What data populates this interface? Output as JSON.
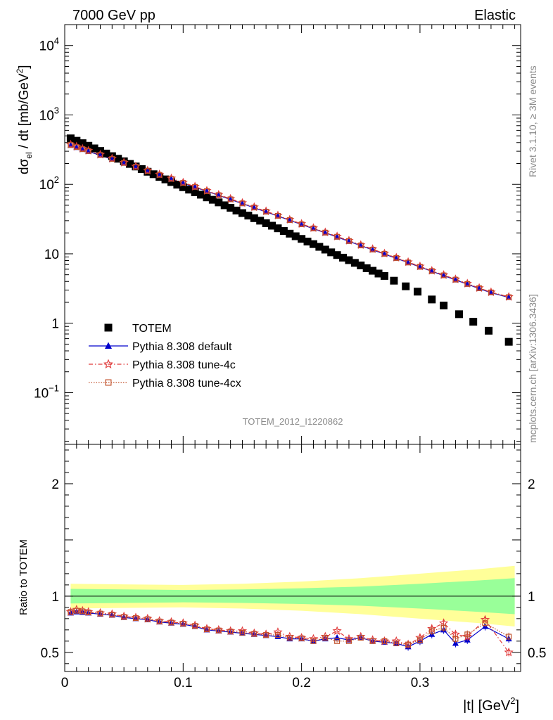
{
  "header": {
    "left": "7000 GeV pp",
    "right": "Elastic"
  },
  "side_labels": {
    "rivet": "Rivet 3.1.10, ≥ 3M events",
    "mcplots": "mcplots.cern.ch [arXiv:1306.3436]"
  },
  "analysis_id": "TOTEM_2012_I1220862",
  "chart_data": [
    {
      "type": "scatter",
      "panel": "main",
      "ylabel": "dσel / dt [mb/GeV²]",
      "yscale": "log",
      "ylim": [
        0.018,
        20000
      ],
      "xlim": [
        0,
        0.385
      ],
      "yticks": [
        {
          "v": 10000,
          "label": "10^4"
        },
        {
          "v": 1000,
          "label": "10^3"
        },
        {
          "v": 100,
          "label": "10^2"
        },
        {
          "v": 10,
          "label": "10"
        },
        {
          "v": 1,
          "label": "1"
        },
        {
          "v": 0.1,
          "label": "10^-1"
        }
      ],
      "legend": {
        "position": "bottom-left",
        "entries": [
          {
            "name": "TOTEM",
            "marker": "filled-square",
            "color": "#000000"
          },
          {
            "name": "Pythia 8.308 default",
            "marker": "filled-triangle",
            "color": "#0000cc"
          },
          {
            "name": "Pythia 8.308 tune-4c",
            "marker": "open-star",
            "color": "#e03a3a"
          },
          {
            "name": "Pythia 8.308 tune-4cx",
            "marker": "open-square",
            "color": "#c0502a"
          }
        ]
      },
      "series": [
        {
          "name": "TOTEM",
          "x": [
            0.005,
            0.01,
            0.015,
            0.02,
            0.025,
            0.03,
            0.035,
            0.04,
            0.045,
            0.05,
            0.055,
            0.06,
            0.065,
            0.07,
            0.075,
            0.08,
            0.085,
            0.09,
            0.095,
            0.1,
            0.105,
            0.11,
            0.115,
            0.12,
            0.125,
            0.13,
            0.135,
            0.14,
            0.145,
            0.15,
            0.155,
            0.16,
            0.165,
            0.17,
            0.175,
            0.18,
            0.185,
            0.19,
            0.195,
            0.2,
            0.205,
            0.21,
            0.215,
            0.22,
            0.225,
            0.23,
            0.235,
            0.24,
            0.245,
            0.25,
            0.255,
            0.26,
            0.265,
            0.27,
            0.278,
            0.288,
            0.298,
            0.31,
            0.32,
            0.333,
            0.345,
            0.358,
            0.375
          ],
          "y": [
            460,
            425,
            392,
            360,
            330,
            303,
            278,
            255,
            234,
            215,
            197,
            181,
            166,
            152,
            140,
            128,
            118,
            108,
            99,
            91,
            84,
            77,
            71,
            65,
            60,
            55,
            50,
            46,
            42,
            38.6,
            35.5,
            32.6,
            30,
            27.6,
            25.4,
            23.3,
            21.3,
            19.5,
            17.9,
            16.4,
            15,
            13.8,
            12.6,
            11.5,
            10.5,
            9.6,
            8.8,
            8.1,
            7.4,
            6.8,
            6.2,
            5.7,
            5.2,
            4.8,
            4.1,
            3.4,
            2.85,
            2.2,
            1.8,
            1.35,
            1.05,
            0.78,
            0.54
          ]
        },
        {
          "name": "Pythia 8.308 default",
          "x": [
            0.005,
            0.01,
            0.015,
            0.02,
            0.03,
            0.04,
            0.05,
            0.06,
            0.07,
            0.08,
            0.09,
            0.1,
            0.11,
            0.12,
            0.13,
            0.14,
            0.15,
            0.16,
            0.17,
            0.18,
            0.19,
            0.2,
            0.21,
            0.22,
            0.23,
            0.24,
            0.25,
            0.26,
            0.27,
            0.28,
            0.29,
            0.3,
            0.31,
            0.32,
            0.33,
            0.34,
            0.35,
            0.36,
            0.375
          ],
          "y": [
            365,
            340,
            318,
            298,
            262,
            230,
            202,
            177,
            155,
            136,
            119,
            104,
            91,
            79.5,
            69.5,
            60.5,
            52.8,
            46,
            40.1,
            34.9,
            30.4,
            26.4,
            23,
            20,
            17.4,
            15.1,
            13.1,
            11.4,
            9.9,
            8.6,
            7.45,
            6.45,
            5.6,
            4.85,
            4.2,
            3.65,
            3.15,
            2.75,
            2.35
          ]
        },
        {
          "name": "Pythia 8.308 tune-4c",
          "x": [
            0.005,
            0.01,
            0.015,
            0.02,
            0.03,
            0.04,
            0.05,
            0.06,
            0.07,
            0.08,
            0.09,
            0.1,
            0.11,
            0.12,
            0.13,
            0.14,
            0.15,
            0.16,
            0.17,
            0.18,
            0.19,
            0.2,
            0.21,
            0.22,
            0.23,
            0.24,
            0.25,
            0.26,
            0.27,
            0.28,
            0.29,
            0.3,
            0.31,
            0.32,
            0.33,
            0.34,
            0.35,
            0.36,
            0.375
          ],
          "y": [
            375,
            350,
            327,
            306,
            268,
            235,
            206,
            181,
            158,
            139,
            122,
            106,
            93,
            81,
            71,
            62,
            54,
            47,
            41,
            35.7,
            31,
            27,
            23.5,
            20.4,
            17.8,
            15.5,
            13.4,
            11.7,
            10.1,
            8.8,
            7.6,
            6.6,
            5.7,
            4.95,
            4.3,
            3.72,
            3.22,
            2.8,
            2.4
          ]
        },
        {
          "name": "Pythia 8.308 tune-4cx",
          "x": [
            0.005,
            0.01,
            0.015,
            0.02,
            0.03,
            0.04,
            0.05,
            0.06,
            0.07,
            0.08,
            0.09,
            0.1,
            0.11,
            0.12,
            0.13,
            0.14,
            0.15,
            0.16,
            0.17,
            0.18,
            0.19,
            0.2,
            0.21,
            0.22,
            0.23,
            0.24,
            0.25,
            0.26,
            0.27,
            0.28,
            0.29,
            0.3,
            0.31,
            0.32,
            0.33,
            0.34,
            0.35,
            0.36,
            0.375
          ],
          "y": [
            370,
            345,
            322,
            302,
            265,
            232,
            204,
            179,
            156,
            137,
            120,
            105,
            92,
            80,
            70,
            61,
            53.3,
            46.4,
            40.4,
            35.2,
            30.6,
            26.6,
            23.2,
            20.2,
            17.6,
            15.3,
            13.2,
            11.5,
            10,
            8.7,
            7.5,
            6.5,
            5.65,
            4.9,
            4.25,
            3.68,
            3.2,
            2.78,
            2.38
          ]
        }
      ]
    },
    {
      "type": "line",
      "panel": "ratio",
      "ylabel": "Ratio to TOTEM",
      "xlabel": "|t| [GeV²]",
      "ylim": [
        0.33,
        2.35
      ],
      "xlim": [
        0,
        0.385
      ],
      "xticks": [
        "0",
        "0.1",
        "0.2",
        "0.3"
      ],
      "yticks": [
        "0.5",
        "1",
        "2"
      ],
      "bands": [
        {
          "name": "yellow-band",
          "color": "#ffff99",
          "x": [
            0.005,
            0.05,
            0.1,
            0.15,
            0.2,
            0.25,
            0.3,
            0.35,
            0.38
          ],
          "half_width": [
            0.11,
            0.105,
            0.1,
            0.11,
            0.13,
            0.16,
            0.2,
            0.24,
            0.27
          ]
        },
        {
          "name": "green-band",
          "color": "#99ff99",
          "x": [
            0.005,
            0.05,
            0.1,
            0.15,
            0.2,
            0.25,
            0.3,
            0.35,
            0.38
          ],
          "half_width": [
            0.065,
            0.06,
            0.055,
            0.06,
            0.07,
            0.085,
            0.11,
            0.14,
            0.16
          ]
        }
      ],
      "series": [
        {
          "name": "Pythia 8.308 default",
          "x": [
            0.005,
            0.01,
            0.015,
            0.02,
            0.03,
            0.04,
            0.05,
            0.06,
            0.07,
            0.08,
            0.09,
            0.1,
            0.11,
            0.12,
            0.13,
            0.14,
            0.15,
            0.16,
            0.17,
            0.18,
            0.19,
            0.2,
            0.21,
            0.22,
            0.23,
            0.24,
            0.25,
            0.26,
            0.27,
            0.28,
            0.29,
            0.3,
            0.31,
            0.32,
            0.33,
            0.34,
            0.355,
            0.375
          ],
          "y": [
            0.85,
            0.86,
            0.855,
            0.85,
            0.84,
            0.83,
            0.81,
            0.8,
            0.79,
            0.77,
            0.76,
            0.75,
            0.73,
            0.7,
            0.69,
            0.68,
            0.67,
            0.66,
            0.65,
            0.64,
            0.62,
            0.62,
            0.6,
            0.62,
            0.63,
            0.61,
            0.63,
            0.6,
            0.59,
            0.58,
            0.55,
            0.6,
            0.66,
            0.7,
            0.58,
            0.61,
            0.73,
            0.62
          ]
        },
        {
          "name": "Pythia 8.308 tune-4c",
          "x": [
            0.005,
            0.01,
            0.015,
            0.02,
            0.03,
            0.04,
            0.05,
            0.06,
            0.07,
            0.08,
            0.09,
            0.1,
            0.11,
            0.12,
            0.13,
            0.14,
            0.15,
            0.16,
            0.17,
            0.18,
            0.19,
            0.2,
            0.21,
            0.22,
            0.23,
            0.24,
            0.25,
            0.26,
            0.27,
            0.28,
            0.29,
            0.3,
            0.31,
            0.32,
            0.33,
            0.34,
            0.355,
            0.375
          ],
          "y": [
            0.86,
            0.88,
            0.87,
            0.86,
            0.85,
            0.84,
            0.82,
            0.81,
            0.8,
            0.78,
            0.77,
            0.76,
            0.74,
            0.71,
            0.7,
            0.69,
            0.69,
            0.67,
            0.66,
            0.68,
            0.64,
            0.63,
            0.62,
            0.64,
            0.69,
            0.62,
            0.64,
            0.61,
            0.6,
            0.6,
            0.57,
            0.63,
            0.71,
            0.76,
            0.66,
            0.64,
            0.79,
            0.5
          ]
        },
        {
          "name": "Pythia 8.308 tune-4cx",
          "x": [
            0.005,
            0.01,
            0.015,
            0.02,
            0.03,
            0.04,
            0.05,
            0.06,
            0.07,
            0.08,
            0.09,
            0.1,
            0.11,
            0.12,
            0.13,
            0.14,
            0.15,
            0.16,
            0.17,
            0.18,
            0.19,
            0.2,
            0.21,
            0.22,
            0.23,
            0.24,
            0.25,
            0.26,
            0.27,
            0.28,
            0.29,
            0.3,
            0.31,
            0.32,
            0.33,
            0.34,
            0.355,
            0.375
          ],
          "y": [
            0.86,
            0.87,
            0.865,
            0.855,
            0.845,
            0.835,
            0.815,
            0.805,
            0.795,
            0.775,
            0.765,
            0.755,
            0.735,
            0.705,
            0.695,
            0.685,
            0.675,
            0.665,
            0.655,
            0.655,
            0.63,
            0.625,
            0.6,
            0.63,
            0.6,
            0.6,
            0.63,
            0.6,
            0.6,
            0.58,
            0.57,
            0.61,
            0.69,
            0.72,
            0.62,
            0.66,
            0.76,
            0.64
          ]
        }
      ]
    }
  ]
}
